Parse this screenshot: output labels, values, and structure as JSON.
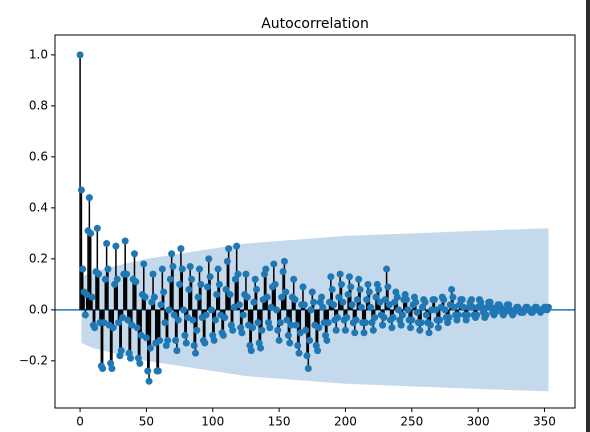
{
  "chart_data": {
    "type": "acf",
    "title": "Autocorrelation",
    "color": "#1f77b4",
    "stem_color": "#000000",
    "band_color": "#c5d9ec",
    "xlim": [
      -18.9,
      373
    ],
    "ylim": [
      -0.385,
      1.078
    ],
    "xticks": [
      0,
      50,
      100,
      150,
      200,
      250,
      300,
      350
    ],
    "yticks": [
      {
        "value": -0.2,
        "label": "−0.2"
      },
      {
        "value": 0,
        "label": "0.0"
      },
      {
        "value": 0.2,
        "label": "0.2"
      },
      {
        "value": 0.4,
        "label": "0.4"
      },
      {
        "value": 0.6,
        "label": "0.6"
      },
      {
        "value": 0.8,
        "label": "0.8"
      },
      {
        "value": 1.0,
        "label": "1.0"
      }
    ],
    "band": {
      "x": [
        1,
        10,
        25,
        50,
        75,
        100,
        125,
        150,
        175,
        200,
        250,
        300,
        353
      ],
      "upper": [
        0.13,
        0.15,
        0.17,
        0.2,
        0.22,
        0.24,
        0.26,
        0.27,
        0.28,
        0.29,
        0.3,
        0.31,
        0.32
      ],
      "lower": [
        -0.13,
        -0.15,
        -0.17,
        -0.2,
        -0.22,
        -0.24,
        -0.26,
        -0.27,
        -0.28,
        -0.29,
        -0.3,
        -0.31,
        -0.32
      ]
    },
    "x": [
      0,
      1,
      2,
      3,
      4,
      5,
      6,
      7,
      8,
      9,
      10,
      11,
      12,
      13,
      14,
      15,
      16,
      17,
      18,
      19,
      20,
      21,
      22,
      23,
      24,
      25,
      26,
      27,
      28,
      29,
      30,
      31,
      32,
      33,
      34,
      35,
      36,
      37,
      38,
      39,
      40,
      41,
      42,
      43,
      44,
      45,
      46,
      47,
      48,
      49,
      50,
      51,
      52,
      53,
      54,
      55,
      56,
      57,
      58,
      59,
      60,
      61,
      62,
      63,
      64,
      65,
      66,
      67,
      68,
      69,
      70,
      71,
      72,
      73,
      74,
      75,
      76,
      77,
      78,
      79,
      80,
      81,
      82,
      83,
      84,
      85,
      86,
      87,
      88,
      89,
      90,
      91,
      92,
      93,
      94,
      95,
      96,
      97,
      98,
      99,
      100,
      101,
      102,
      103,
      104,
      105,
      106,
      107,
      108,
      109,
      110,
      111,
      112,
      113,
      114,
      115,
      116,
      117,
      118,
      119,
      120,
      121,
      122,
      123,
      124,
      125,
      126,
      127,
      128,
      129,
      130,
      131,
      132,
      133,
      134,
      135,
      136,
      137,
      138,
      139,
      140,
      141,
      142,
      143,
      144,
      145,
      146,
      147,
      148,
      149,
      150,
      151,
      152,
      153,
      154,
      155,
      156,
      157,
      158,
      159,
      160,
      161,
      162,
      163,
      164,
      165,
      166,
      167,
      168,
      169,
      170,
      171,
      172,
      173,
      174,
      175,
      176,
      177,
      178,
      179,
      180,
      181,
      182,
      183,
      184,
      185,
      186,
      187,
      188,
      189,
      190,
      191,
      192,
      193,
      194,
      195,
      196,
      197,
      198,
      199,
      200,
      201,
      202,
      203,
      204,
      205,
      206,
      207,
      208,
      209,
      210,
      211,
      212,
      213,
      214,
      215,
      216,
      217,
      218,
      219,
      220,
      221,
      222,
      223,
      224,
      225,
      226,
      227,
      228,
      229,
      230,
      231,
      232,
      233,
      234,
      235,
      236,
      237,
      238,
      239,
      240,
      241,
      242,
      243,
      244,
      245,
      246,
      247,
      248,
      249,
      250,
      251,
      252,
      253,
      254,
      255,
      256,
      257,
      258,
      259,
      260,
      261,
      262,
      263,
      264,
      265,
      266,
      267,
      268,
      269,
      270,
      271,
      272,
      273,
      274,
      275,
      276,
      277,
      278,
      279,
      280,
      281,
      282,
      283,
      284,
      285,
      286,
      287,
      288,
      289,
      290,
      291,
      292,
      293,
      294,
      295,
      296,
      297,
      298,
      299,
      300,
      301,
      302,
      303,
      304,
      305,
      306,
      307,
      308,
      309,
      310,
      311,
      312,
      313,
      314,
      315,
      316,
      317,
      318,
      319,
      320,
      321,
      322,
      323,
      324,
      325,
      326,
      327,
      328,
      329,
      330,
      331,
      332,
      333,
      334,
      335,
      336,
      337,
      338,
      339,
      340,
      341,
      342,
      343,
      344,
      345,
      346,
      347,
      348,
      349,
      350,
      351,
      352,
      353
    ],
    "values": [
      1.0,
      0.47,
      0.16,
      0.07,
      -0.02,
      0.06,
      0.31,
      0.44,
      0.3,
      0.05,
      -0.06,
      -0.07,
      0.15,
      0.32,
      0.14,
      -0.05,
      -0.22,
      -0.23,
      -0.05,
      0.12,
      0.26,
      0.16,
      -0.06,
      -0.21,
      -0.23,
      -0.07,
      0.1,
      0.25,
      0.12,
      -0.05,
      -0.18,
      -0.16,
      -0.03,
      0.14,
      0.27,
      0.14,
      -0.04,
      -0.17,
      -0.19,
      -0.06,
      0.12,
      0.22,
      0.11,
      -0.07,
      -0.19,
      -0.21,
      -0.1,
      0.06,
      0.18,
      0.05,
      -0.11,
      -0.24,
      -0.28,
      -0.15,
      0.03,
      0.14,
      0.05,
      -0.13,
      -0.24,
      -0.24,
      -0.12,
      0.02,
      0.16,
      0.07,
      -0.05,
      -0.14,
      -0.12,
      0.0,
      0.12,
      0.22,
      0.17,
      -0.02,
      -0.12,
      -0.16,
      -0.04,
      0.1,
      0.24,
      0.16,
      0.0,
      -0.1,
      -0.13,
      -0.03,
      0.08,
      0.17,
      0.12,
      -0.04,
      -0.14,
      -0.17,
      -0.08,
      0.05,
      0.16,
      0.1,
      -0.03,
      -0.12,
      -0.13,
      -0.02,
      0.09,
      0.2,
      0.13,
      0.0,
      -0.1,
      -0.12,
      -0.04,
      0.06,
      0.16,
      0.1,
      -0.02,
      -0.09,
      -0.1,
      -0.03,
      0.08,
      0.19,
      0.24,
      0.06,
      -0.06,
      -0.08,
      0.01,
      0.12,
      0.25,
      0.14,
      0.02,
      -0.07,
      -0.09,
      -0.02,
      0.06,
      0.14,
      0.05,
      -0.06,
      -0.14,
      -0.16,
      -0.07,
      0.03,
      0.12,
      0.08,
      -0.05,
      -0.13,
      -0.15,
      -0.08,
      0.04,
      0.14,
      0.16,
      0.05,
      -0.05,
      -0.07,
      0.01,
      0.09,
      0.18,
      0.1,
      0.0,
      -0.08,
      -0.12,
      -0.05,
      0.05,
      0.15,
      0.19,
      0.07,
      -0.04,
      -0.1,
      -0.13,
      -0.06,
      0.05,
      0.12,
      0.04,
      -0.06,
      -0.14,
      -0.17,
      -0.09,
      0.02,
      0.09,
      0.02,
      -0.08,
      -0.18,
      -0.23,
      -0.12,
      0.0,
      0.07,
      0.03,
      -0.06,
      -0.14,
      -0.16,
      -0.07,
      0.03,
      0.05,
      0.01,
      -0.05,
      -0.1,
      -0.12,
      -0.05,
      0.03,
      0.13,
      0.08,
      0.02,
      -0.04,
      -0.08,
      -0.03,
      0.05,
      0.14,
      0.1,
      0.03,
      -0.04,
      -0.08,
      -0.03,
      0.06,
      0.13,
      0.09,
      0.02,
      -0.05,
      -0.09,
      -0.04,
      0.04,
      0.12,
      0.08,
      0.01,
      -0.05,
      -0.09,
      -0.05,
      0.04,
      0.1,
      0.07,
      0.01,
      -0.05,
      -0.08,
      -0.03,
      0.05,
      0.1,
      0.08,
      0.03,
      -0.02,
      -0.06,
      -0.03,
      0.04,
      0.16,
      0.09,
      0.02,
      -0.04,
      -0.07,
      -0.03,
      0.03,
      0.07,
      0.05,
      0.0,
      -0.04,
      -0.06,
      -0.02,
      0.04,
      0.06,
      0.04,
      0.0,
      -0.04,
      -0.07,
      -0.04,
      0.02,
      0.05,
      0.03,
      -0.01,
      -0.05,
      -0.08,
      -0.05,
      0.01,
      0.04,
      0.03,
      -0.02,
      -0.05,
      -0.09,
      -0.06,
      0.0,
      0.04,
      0.04,
      0.0,
      -0.04,
      -0.07,
      -0.04,
      0.01,
      0.05,
      0.04,
      0.0,
      -0.03,
      -0.05,
      -0.03,
      0.02,
      0.08,
      0.05,
      0.01,
      -0.02,
      -0.04,
      -0.02,
      0.02,
      0.04,
      0.04,
      0.01,
      -0.02,
      -0.04,
      -0.02,
      0.01,
      0.03,
      0.04,
      0.01,
      -0.02,
      -0.03,
      -0.02,
      0.01,
      0.04,
      0.03,
      0.01,
      -0.01,
      -0.03,
      -0.02,
      0.01,
      0.03,
      0.03,
      0.01,
      -0.01,
      -0.02,
      -0.01,
      0.01,
      0.02,
      0.02,
      0.01,
      -0.01,
      -0.02,
      -0.01,
      0.0,
      0.02,
      0.02,
      0.0,
      -0.01,
      -0.02,
      -0.01,
      0.0,
      0.01,
      0.01,
      0.0,
      -0.01,
      -0.01,
      -0.01,
      0.0,
      0.01,
      0.01,
      0.0,
      0.0,
      -0.01,
      -0.01,
      0.0,
      0.01,
      0.01,
      0.0,
      0.0,
      -0.01,
      0.0,
      0.0,
      0.01,
      0.01,
      0.0,
      0.01
    ]
  }
}
